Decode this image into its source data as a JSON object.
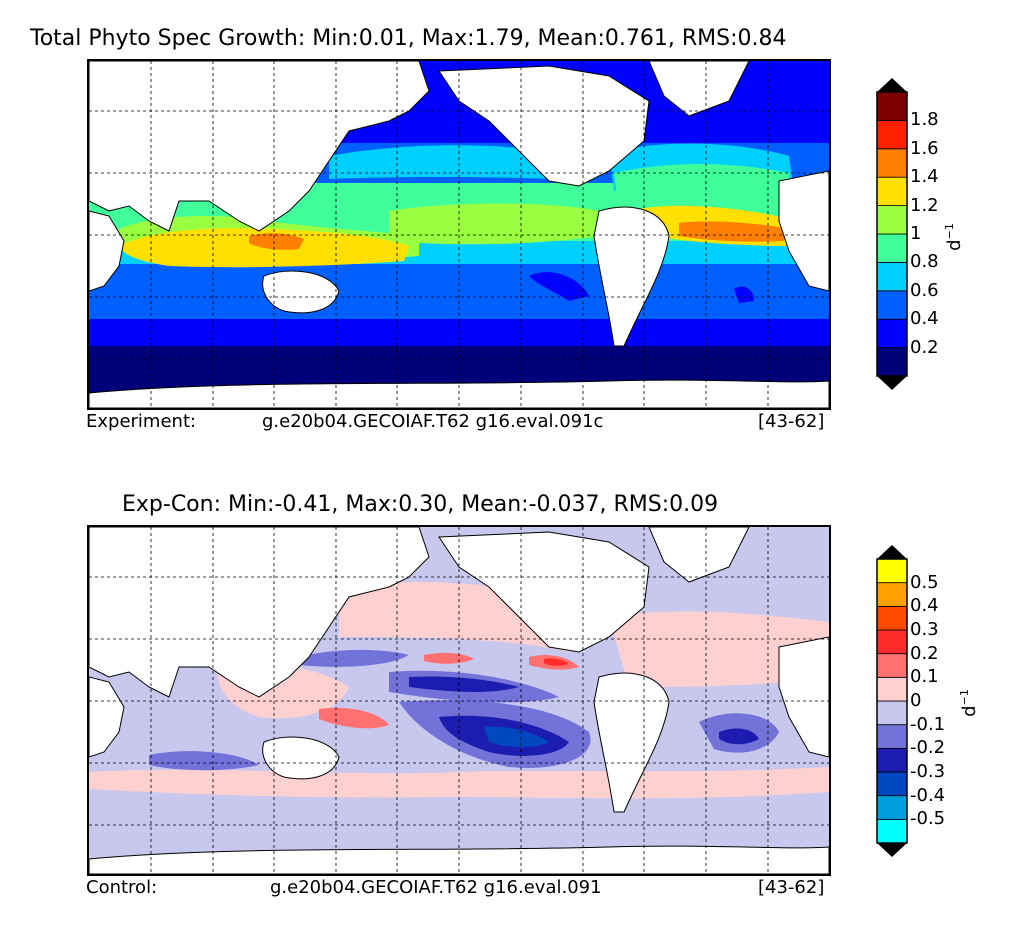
{
  "chart_data": [
    {
      "type": "heatmap",
      "title": "Total Phyto Spec Growth: Min:0.01, Max:1.79, Mean:0.761, RMS:0.84",
      "stats": {
        "min": 0.01,
        "max": 1.79,
        "mean": 0.761,
        "rms": 0.84
      },
      "colorbar": {
        "unit": "d",
        "unit_exp": "−1",
        "ticks": [
          "0.2",
          "0.4",
          "0.6",
          "0.8",
          "1",
          "1.2",
          "1.4",
          "1.6",
          "1.8"
        ],
        "levels": [
          0,
          0.2,
          0.4,
          0.6,
          0.8,
          1.0,
          1.2,
          1.4,
          1.6,
          1.8,
          2.0
        ],
        "colors": [
          "#00007a",
          "#0000ff",
          "#0060ff",
          "#00d0ff",
          "#40ff9a",
          "#9aff40",
          "#ffe000",
          "#ff8000",
          "#ff2000",
          "#800000"
        ],
        "extend_min_color": "#000000",
        "extend_max_color": "#000000"
      },
      "footer": {
        "label": "Experiment:",
        "case": "g.e20b04.GECOIAF.T62 g16.eval.091c",
        "years": "[43-62]"
      }
    },
    {
      "type": "heatmap",
      "title": "Exp-Con: Min:-0.41, Max:0.30, Mean:-0.037, RMS:0.09",
      "stats": {
        "min": -0.41,
        "max": 0.3,
        "mean": -0.037,
        "rms": 0.09
      },
      "colorbar": {
        "unit": "d",
        "unit_exp": "−1",
        "ticks": [
          "-0.5",
          "-0.4",
          "-0.3",
          "-0.2",
          "-0.1",
          "0",
          "0.1",
          "0.2",
          "0.3",
          "0.4",
          "0.5"
        ],
        "levels": [
          -0.6,
          -0.5,
          -0.4,
          -0.3,
          -0.2,
          -0.1,
          0,
          0.1,
          0.2,
          0.3,
          0.4,
          0.5,
          0.6
        ],
        "colors": [
          "#00ffff",
          "#00a0e0",
          "#0048c0",
          "#1c1cb0",
          "#7272d8",
          "#c8c8ee",
          "#ffd0d0",
          "#ff7070",
          "#ff2a2a",
          "#ff4a00",
          "#ffa000",
          "#ffff00"
        ],
        "extend_min_color": "#000000",
        "extend_max_color": "#000000"
      },
      "footer": {
        "label": "Control:",
        "case": "g.e20b04.GECOIAF.T62 g16.eval.091",
        "years": "[43-62]"
      }
    }
  ]
}
